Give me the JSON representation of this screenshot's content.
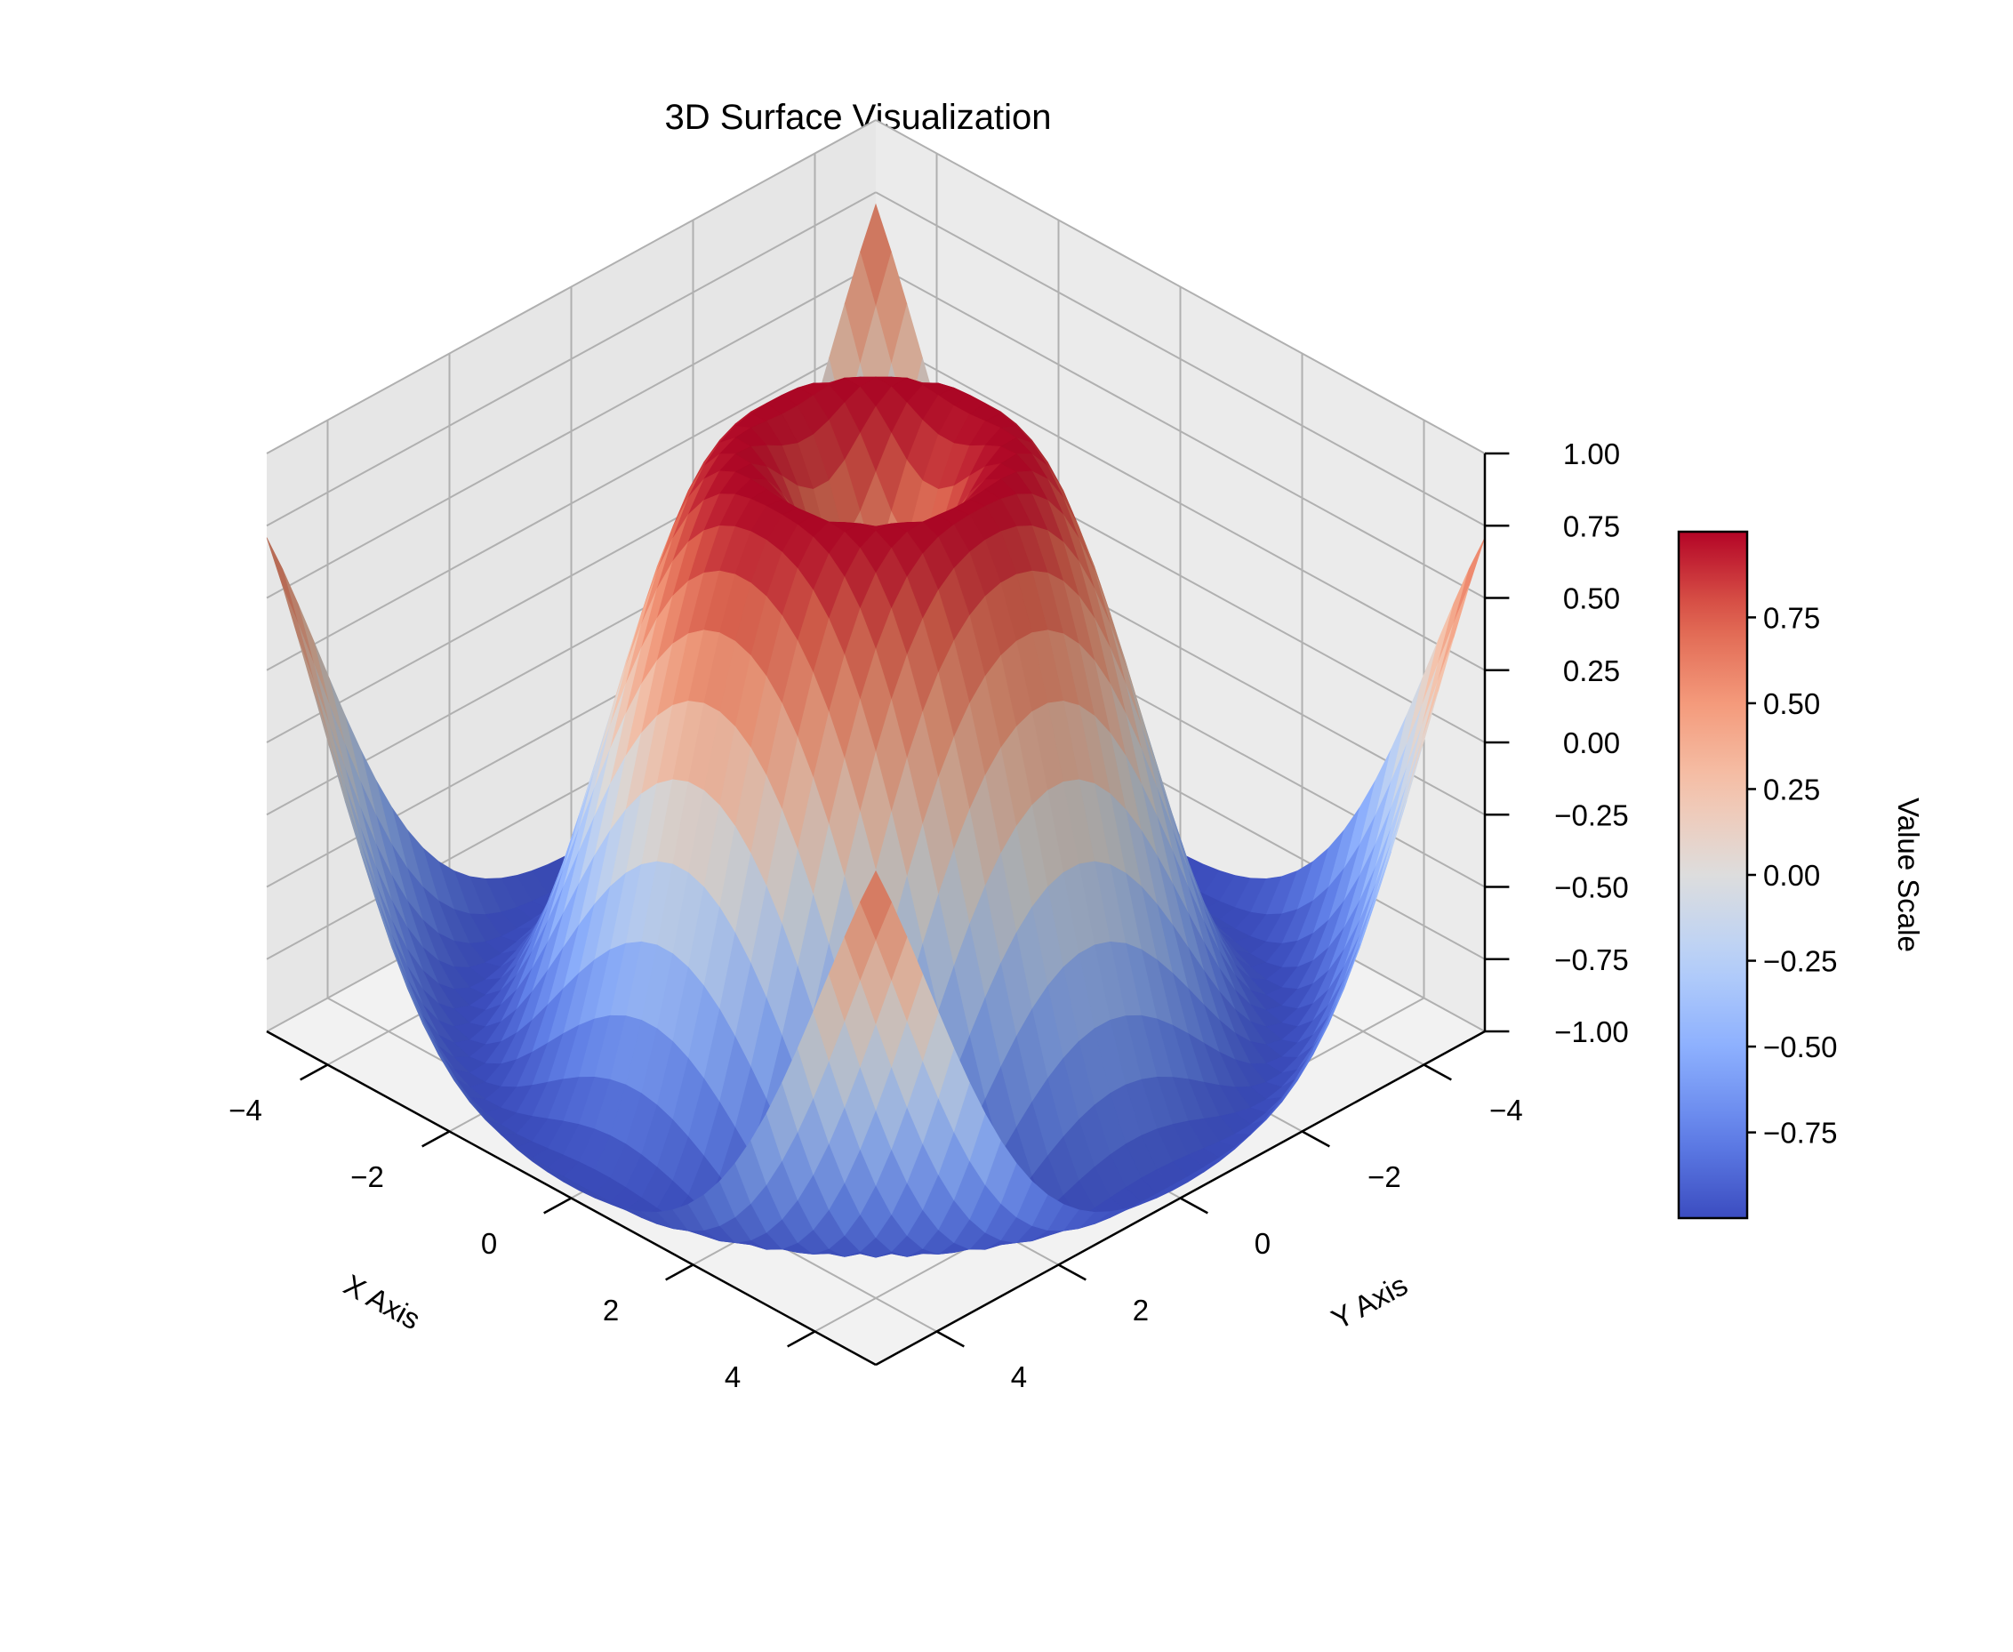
{
  "chart_data": {
    "type": "surface3d",
    "title": "3D Surface Visualization",
    "function": "z = sin(sqrt(x^2 + y^2))",
    "x": {
      "label": "X Axis",
      "range": [
        -5,
        5
      ],
      "grid_points": 40,
      "ticks": [
        -4,
        -2,
        0,
        2,
        4
      ],
      "tick_labels": [
        "−4",
        "−2",
        "0",
        "2",
        "4"
      ]
    },
    "y": {
      "label": "Y Axis",
      "range": [
        -5,
        5
      ],
      "grid_points": 40,
      "ticks": [
        -4,
        -2,
        0,
        2,
        4
      ],
      "tick_labels": [
        "−4",
        "−2",
        "0",
        "2",
        "4"
      ]
    },
    "z": {
      "range": [
        -1,
        1
      ],
      "ticks": [
        -1,
        -0.75,
        -0.5,
        -0.25,
        0,
        0.25,
        0.5,
        0.75,
        1
      ],
      "tick_labels": [
        "−1.00",
        "−0.75",
        "−0.50",
        "−0.25",
        "0.00",
        "0.25",
        "0.50",
        "0.75",
        "1.00"
      ]
    },
    "colormap": "coolwarm",
    "colorbar": {
      "label": "Value Scale",
      "range": [
        -0.9996,
        0.9996
      ],
      "ticks": [
        -0.75,
        -0.5,
        -0.25,
        0,
        0.25,
        0.5,
        0.75
      ],
      "tick_labels": [
        "−0.75",
        "−0.50",
        "−0.25",
        "0.00",
        "0.25",
        "0.50",
        "0.75"
      ]
    },
    "view": {
      "elevation_deg": 30,
      "azimuth_deg": -45
    },
    "grid": true,
    "colors": {
      "pane": "#f2f2f2",
      "gridline": "#b0b0b0",
      "cold": "#3b4cc0",
      "neutral": "#dddddd",
      "warm": "#b40426"
    }
  }
}
